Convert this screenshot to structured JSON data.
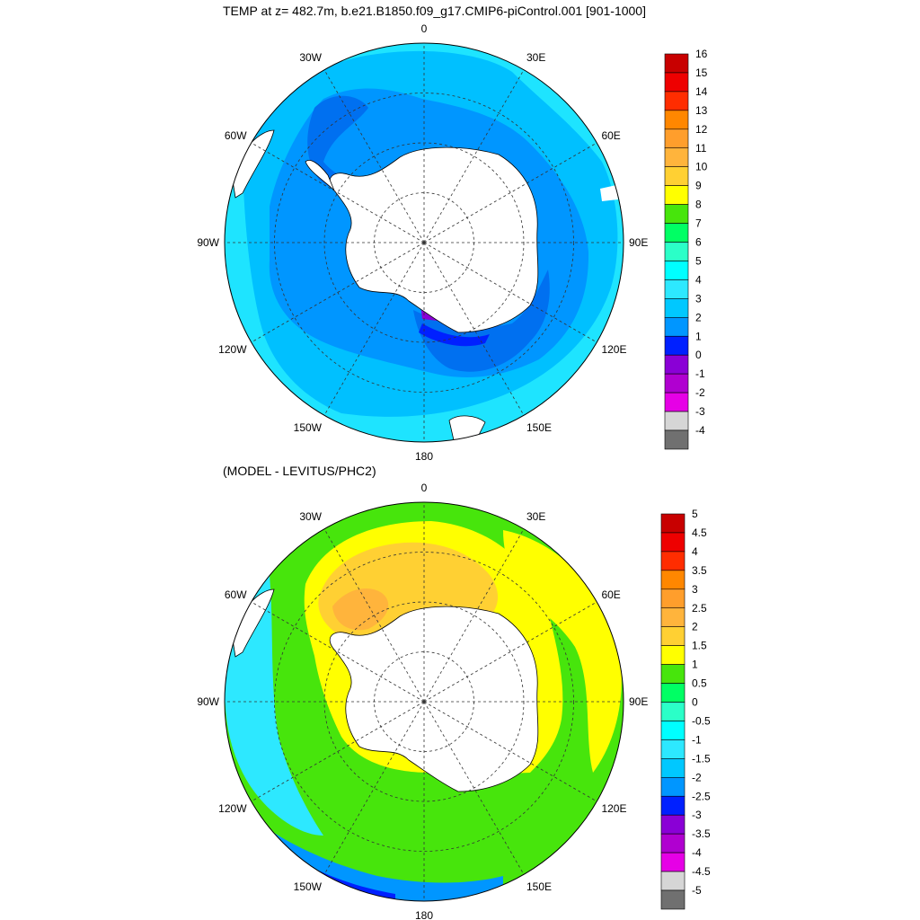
{
  "titles": {
    "top": "TEMP at z= 482.7m, b.e21.B1850.f09_g17.CMIP6-piControl.001 [901-1000]",
    "bottom": "(MODEL - LEVITUS/PHC2)"
  },
  "maps": [
    {
      "id": "temp-map",
      "meridian_labels": [
        "0",
        "30E",
        "60E",
        "90E",
        "120E",
        "150E",
        "180",
        "150W",
        "120W",
        "90W",
        "60W",
        "30W"
      ],
      "colorbar": {
        "levels": [
          "16",
          "15",
          "14",
          "13",
          "12",
          "11",
          "10",
          "9",
          "8",
          "7",
          "6",
          "5",
          "4",
          "3",
          "2",
          "1",
          "0",
          "-1",
          "-2",
          "-3",
          "-4"
        ],
        "colors": [
          "#c80000",
          "#ee0000",
          "#ff2d00",
          "#ff8700",
          "#ff9e2c",
          "#ffb43c",
          "#ffd033",
          "#ffff00",
          "#47e50c",
          "#00ff64",
          "#2bffc8",
          "#00ffff",
          "#2de8ff",
          "#00c8ff",
          "#0096ff",
          "#0020ff",
          "#8a00d6",
          "#b000d0",
          "#e600e6",
          "#d6d6d6",
          "#707070"
        ]
      }
    },
    {
      "id": "diff-map",
      "meridian_labels": [
        "0",
        "30E",
        "60E",
        "90E",
        "120E",
        "150E",
        "180",
        "150W",
        "120W",
        "90W",
        "60W",
        "30W"
      ],
      "colorbar": {
        "levels": [
          "5",
          "4.5",
          "4",
          "3.5",
          "3",
          "2.5",
          "2",
          "1.5",
          "1",
          "0.5",
          "0",
          "-0.5",
          "-1",
          "-1.5",
          "-2",
          "-2.5",
          "-3",
          "-3.5",
          "-4",
          "-4.5",
          "-5"
        ],
        "colors": [
          "#c80000",
          "#ee0000",
          "#ff2d00",
          "#ff8700",
          "#ff9e2c",
          "#ffb43c",
          "#ffd033",
          "#ffff00",
          "#47e50c",
          "#00ff64",
          "#2bffc8",
          "#00ffff",
          "#2de8ff",
          "#00c8ff",
          "#0096ff",
          "#0020ff",
          "#8a00d6",
          "#b000d0",
          "#e600e6",
          "#d6d6d6",
          "#707070"
        ]
      }
    }
  ],
  "colors": {
    "land": "#ffffff",
    "temp_outer": "#1ee4ff",
    "temp_mid": "#00c0ff",
    "temp_inner": "#0096ff",
    "temp_shelf": "#0070f0",
    "temp_cold": "#0020ff",
    "temp_purple": "#8a00d6",
    "diff_green": "#47e50c",
    "diff_yellow": "#ffff00",
    "diff_orange_light": "#ffd033",
    "diff_orange": "#ffb43c",
    "diff_cyan": "#2de8ff",
    "diff_blue": "#0096ff",
    "diff_deepblue": "#0020ff"
  }
}
